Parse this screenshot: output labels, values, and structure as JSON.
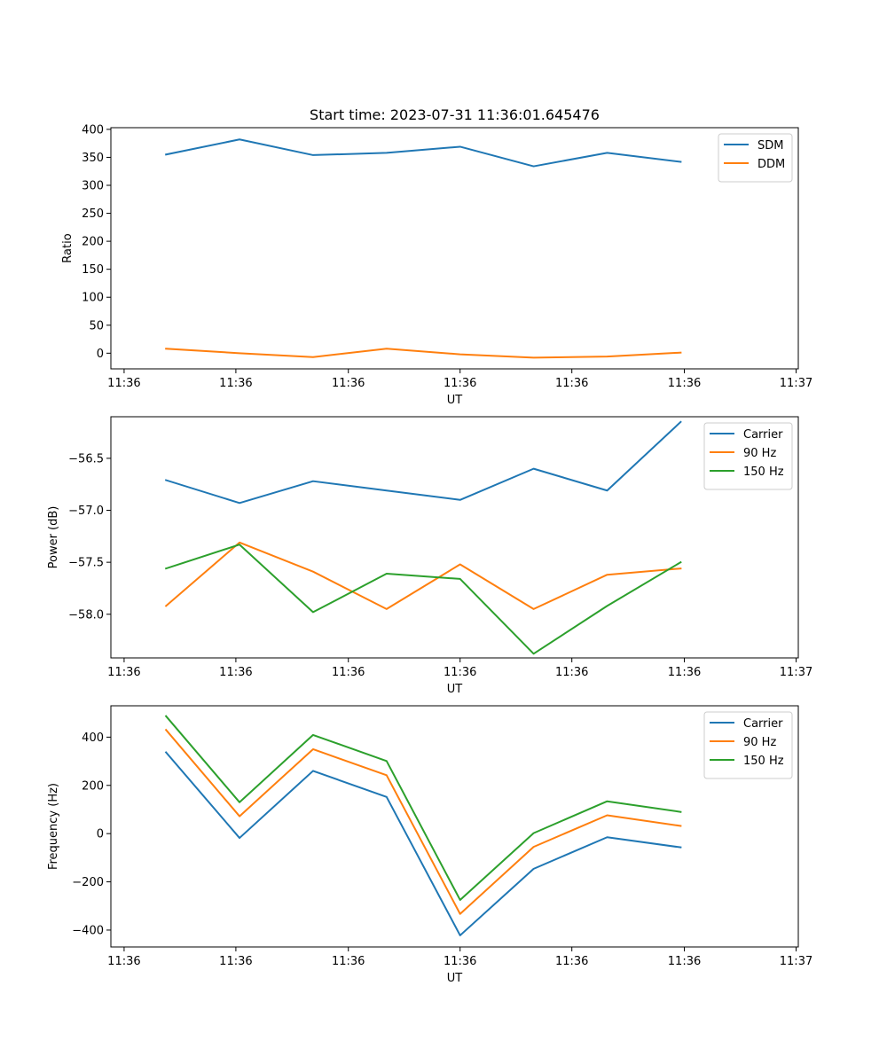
{
  "chart_data": [
    {
      "type": "line",
      "title": "Start time: 2023-07-31 11:36:01.645476",
      "xlabel": "UT",
      "ylabel": "Ratio",
      "x": [
        0,
        1,
        2,
        3,
        4,
        5,
        6,
        7
      ],
      "xlim": [
        -0.75,
        8.6
      ],
      "xticks": [
        -0.57,
        0.95,
        2.48,
        4.0,
        5.52,
        7.05,
        8.57
      ],
      "xtick_labels": [
        "11:36",
        "11:36",
        "11:36",
        "11:36",
        "11:36",
        "11:36",
        "11:37"
      ],
      "ylim": [
        -28,
        403
      ],
      "yticks": [
        0,
        50,
        100,
        150,
        200,
        250,
        300,
        350,
        400
      ],
      "ytick_labels": [
        "0",
        "50",
        "100",
        "150",
        "200",
        "250",
        "300",
        "350",
        "400"
      ],
      "legend_position": "top-right",
      "series": [
        {
          "name": "SDM",
          "color": "#1f77b4",
          "values": [
            355,
            382,
            354,
            358,
            369,
            334,
            358,
            342
          ]
        },
        {
          "name": "DDM",
          "color": "#ff7f0e",
          "values": [
            8,
            0,
            -7,
            8,
            -2,
            -8,
            -6,
            1
          ]
        }
      ]
    },
    {
      "type": "line",
      "title": "",
      "xlabel": "UT",
      "ylabel": "Power (dB)",
      "x": [
        0,
        1,
        2,
        3,
        4,
        5,
        6,
        7
      ],
      "xlim": [
        -0.75,
        8.6
      ],
      "xticks": [
        -0.57,
        0.95,
        2.48,
        4.0,
        5.52,
        7.05,
        8.57
      ],
      "xtick_labels": [
        "11:36",
        "11:36",
        "11:36",
        "11:36",
        "11:36",
        "11:36",
        "11:37"
      ],
      "ylim": [
        -58.42,
        -56.1
      ],
      "yticks": [
        -58.0,
        -57.5,
        -57.0,
        -56.5
      ],
      "ytick_labels": [
        "−58.0",
        "−57.5",
        "−57.0",
        "−56.5"
      ],
      "legend_position": "top-right",
      "series": [
        {
          "name": "Carrier",
          "color": "#1f77b4",
          "values": [
            -56.71,
            -56.93,
            -56.72,
            -56.81,
            -56.9,
            -56.6,
            -56.81,
            -56.15
          ]
        },
        {
          "name": "90 Hz",
          "color": "#ff7f0e",
          "values": [
            -57.92,
            -57.31,
            -57.59,
            -57.95,
            -57.52,
            -57.95,
            -57.62,
            -57.56
          ]
        },
        {
          "name": "150 Hz",
          "color": "#2ca02c",
          "values": [
            -57.56,
            -57.33,
            -57.98,
            -57.61,
            -57.66,
            -58.38,
            -57.92,
            -57.5
          ]
        }
      ]
    },
    {
      "type": "line",
      "title": "",
      "xlabel": "UT",
      "ylabel": "Frequency (Hz)",
      "x": [
        0,
        1,
        2,
        3,
        4,
        5,
        6,
        7
      ],
      "xlim": [
        -0.75,
        8.6
      ],
      "xticks": [
        -0.57,
        0.95,
        2.48,
        4.0,
        5.52,
        7.05,
        8.57
      ],
      "xtick_labels": [
        "11:36",
        "11:36",
        "11:36",
        "11:36",
        "11:36",
        "11:36",
        "11:37"
      ],
      "ylim": [
        -470,
        530
      ],
      "yticks": [
        -400,
        -200,
        0,
        200,
        400
      ],
      "ytick_labels": [
        "−400",
        "−200",
        "0",
        "200",
        "400"
      ],
      "legend_position": "top-right",
      "series": [
        {
          "name": "Carrier",
          "color": "#1f77b4",
          "values": [
            337,
            -18,
            260,
            152,
            -422,
            -146,
            -15,
            -57
          ]
        },
        {
          "name": "90 Hz",
          "color": "#ff7f0e",
          "values": [
            430,
            72,
            350,
            242,
            -333,
            -55,
            76,
            32
          ]
        },
        {
          "name": "150 Hz",
          "color": "#2ca02c",
          "values": [
            487,
            130,
            409,
            301,
            -275,
            2,
            134,
            90
          ]
        }
      ]
    }
  ]
}
